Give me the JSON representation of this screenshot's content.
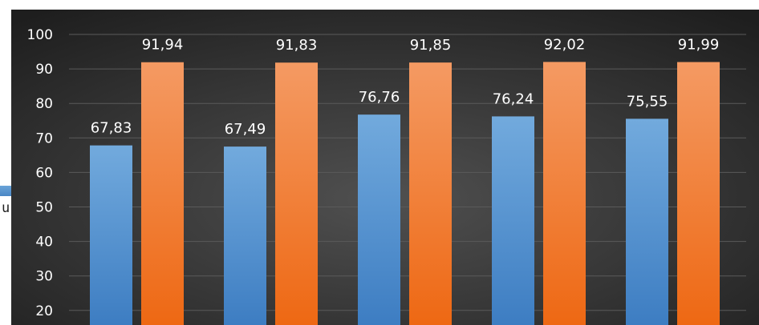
{
  "chart_data": {
    "type": "bar",
    "categories": [
      "",
      "",
      "",
      "",
      ""
    ],
    "series": [
      {
        "values": [
          67.83,
          67.49,
          76.76,
          76.24,
          75.55
        ],
        "labels": [
          "67,83",
          "67,49",
          "76,76",
          "76,24",
          "75,55"
        ]
      },
      {
        "values": [
          91.94,
          91.83,
          91.85,
          92.02,
          91.99
        ],
        "labels": [
          "91,94",
          "91,83",
          "91,85",
          "92,02",
          "91,99"
        ]
      }
    ],
    "yticks": [
      "20",
      "30",
      "40",
      "50",
      "60",
      "70",
      "80",
      "90",
      "100"
    ],
    "ylim": [
      20,
      100
    ],
    "grid": true,
    "colors": {
      "series1_top": "#6fa8dc",
      "series1_bottom": "#3f7fc3",
      "series2_top": "#f5955a",
      "series2_bottom": "#ef6a12",
      "background_center": "#4a4a4a",
      "background_edge": "#1f1f1f",
      "gridline": "#5a5a5a"
    }
  },
  "edge_fragment_text": "u"
}
